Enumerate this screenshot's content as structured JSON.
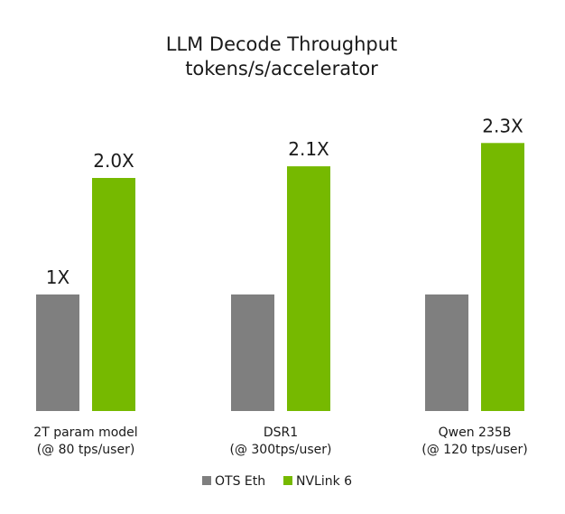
{
  "chart_data": {
    "type": "bar",
    "title": "LLM Decode Throughput",
    "subtitle": "tokens/s/accelerator",
    "categories": [
      {
        "line1": "2T param model",
        "line2": "(@ 80 tps/user)"
      },
      {
        "line1": "DSR1",
        "line2": "(@ 300tps/user)"
      },
      {
        "line1": "Qwen 235B",
        "line2": "(@ 120 tps/user)"
      }
    ],
    "series": [
      {
        "name": "OTS Eth",
        "color": "#7f7f7f",
        "values": [
          1.0,
          1.0,
          1.0
        ],
        "labels": [
          "1X",
          "",
          ""
        ]
      },
      {
        "name": "NVLink 6",
        "color": "#76b900",
        "values": [
          2.0,
          2.1,
          2.3
        ],
        "labels": [
          "2.0X",
          "2.1X",
          "2.3X"
        ]
      }
    ],
    "ylim": [
      0,
      2.3
    ],
    "xlabel": "",
    "ylabel": "",
    "grid": false,
    "axes_visible": false,
    "legend": "bottom-center"
  }
}
